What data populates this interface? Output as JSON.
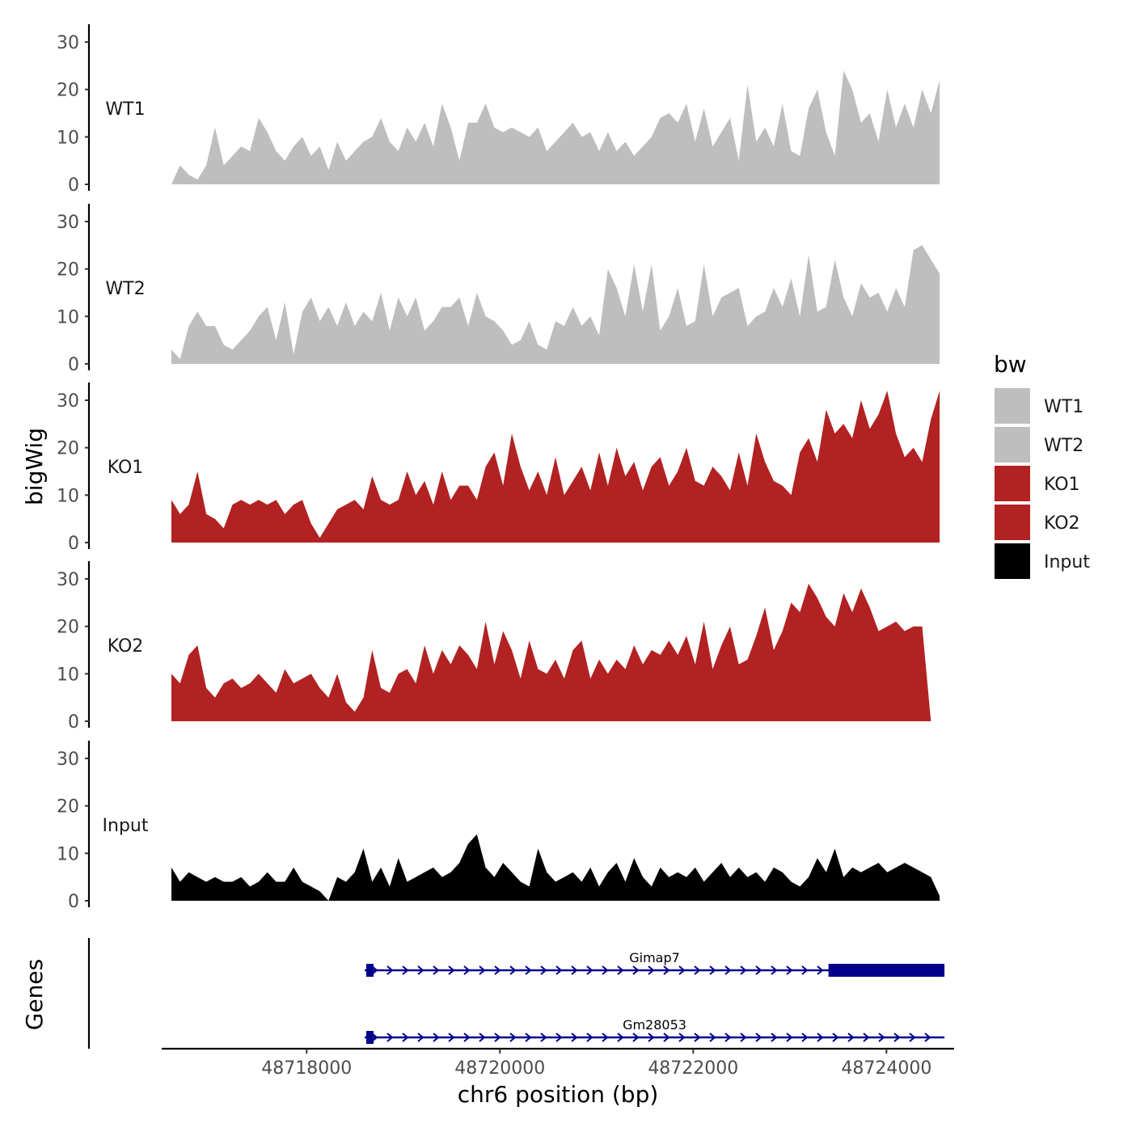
{
  "chart_data": {
    "type": "area",
    "title": "",
    "ylabel": "bigWig",
    "xlabel": "chr6 position (bp)",
    "genes_label": "Genes",
    "xlim": [
      48716500,
      48724700
    ],
    "ylim": [
      0,
      32
    ],
    "y_ticks": [
      0,
      10,
      20,
      30
    ],
    "x_ticks": [
      48718000,
      48720000,
      48722000,
      48724000
    ],
    "x_start": 48716600,
    "x_end": 48724550,
    "legend": {
      "title": "bw",
      "position": "right",
      "items": [
        {
          "label": "WT1",
          "color": "#bebebe"
        },
        {
          "label": "WT2",
          "color": "#bebebe"
        },
        {
          "label": "KO1",
          "color": "#b22222"
        },
        {
          "label": "KO2",
          "color": "#b22222"
        },
        {
          "label": "Input",
          "color": "#000000"
        }
      ]
    },
    "series": [
      {
        "name": "WT1",
        "color": "#bebebe",
        "values": [
          0,
          4,
          2,
          1,
          4,
          12,
          4,
          6,
          8,
          7,
          14,
          11,
          7,
          5,
          8,
          10,
          6,
          8,
          3,
          9,
          5,
          7,
          9,
          10,
          14,
          9,
          7,
          12,
          9,
          13,
          8,
          17,
          12,
          5,
          13,
          13,
          17,
          12,
          11,
          12,
          11,
          10,
          12,
          7,
          9,
          11,
          13,
          10,
          11,
          7,
          11,
          7,
          9,
          6,
          8,
          10,
          14,
          15,
          13,
          17,
          9,
          16,
          8,
          11,
          14,
          5,
          21,
          9,
          12,
          8,
          17,
          7,
          6,
          16,
          20,
          11,
          6,
          24,
          20,
          13,
          15,
          9,
          20,
          12,
          17,
          12,
          20,
          15,
          22
        ]
      },
      {
        "name": "WT2",
        "color": "#bebebe",
        "values": [
          3,
          1,
          8,
          11,
          8,
          8,
          4,
          3,
          5,
          7,
          10,
          12,
          5,
          13,
          2,
          11,
          14,
          9,
          12,
          8,
          13,
          8,
          11,
          9,
          15,
          7,
          14,
          10,
          14,
          7,
          9,
          12,
          12,
          14,
          8,
          15,
          10,
          9,
          7,
          4,
          5,
          9,
          4,
          3,
          9,
          8,
          12,
          8,
          10,
          6,
          20,
          16,
          10,
          21,
          11,
          21,
          7,
          10,
          16,
          8,
          9,
          21,
          10,
          14,
          15,
          16,
          8,
          10,
          11,
          16,
          12,
          18,
          10,
          23,
          11,
          12,
          22,
          14,
          10,
          17,
          14,
          15,
          11,
          16,
          12,
          24,
          25,
          22,
          19
        ]
      },
      {
        "name": "KO1",
        "color": "#b22222",
        "values": [
          9,
          6,
          8,
          15,
          6,
          5,
          3,
          8,
          9,
          8,
          9,
          8,
          9,
          6,
          8,
          9,
          4,
          1,
          4,
          7,
          8,
          9,
          7,
          14,
          9,
          8,
          9,
          15,
          10,
          13,
          8,
          15,
          9,
          12,
          12,
          9,
          16,
          19,
          12,
          23,
          16,
          11,
          15,
          10,
          18,
          10,
          13,
          16,
          11,
          19,
          12,
          20,
          14,
          17,
          11,
          16,
          18,
          12,
          15,
          20,
          13,
          12,
          16,
          14,
          11,
          19,
          12,
          23,
          17,
          13,
          12,
          10,
          19,
          22,
          17,
          28,
          23,
          25,
          22,
          30,
          24,
          27,
          32,
          23,
          18,
          20,
          17,
          26,
          32
        ]
      },
      {
        "name": "KO2",
        "color": "#b22222",
        "values": [
          10,
          8,
          14,
          16,
          7,
          5,
          8,
          9,
          7,
          8,
          10,
          8,
          6,
          11,
          8,
          9,
          10,
          7,
          5,
          10,
          4,
          2,
          5,
          15,
          7,
          6,
          10,
          11,
          8,
          16,
          10,
          15,
          12,
          16,
          14,
          11,
          21,
          12,
          19,
          15,
          9,
          17,
          11,
          10,
          13,
          9,
          15,
          17,
          9,
          13,
          10,
          13,
          11,
          16,
          12,
          15,
          14,
          17,
          14,
          18,
          12,
          21,
          11,
          16,
          20,
          12,
          13,
          18,
          24,
          15,
          19,
          25,
          23,
          29,
          26,
          22,
          20,
          27,
          23,
          28,
          24,
          19,
          20,
          21,
          19,
          20,
          20,
          0,
          0
        ]
      },
      {
        "name": "Input",
        "color": "#000000",
        "values": [
          7,
          4,
          6,
          5,
          4,
          5,
          4,
          4,
          5,
          3,
          4,
          6,
          4,
          4,
          7,
          4,
          3,
          2,
          0,
          5,
          4,
          6,
          11,
          4,
          7,
          3,
          9,
          4,
          5,
          6,
          7,
          5,
          6,
          8,
          12,
          14,
          7,
          5,
          8,
          6,
          4,
          3,
          11,
          6,
          4,
          5,
          6,
          4,
          7,
          3,
          6,
          8,
          4,
          9,
          5,
          3,
          7,
          5,
          6,
          5,
          7,
          4,
          6,
          8,
          5,
          7,
          5,
          6,
          4,
          7,
          6,
          4,
          3,
          5,
          9,
          6,
          11,
          5,
          7,
          6,
          7,
          8,
          6,
          7,
          8,
          7,
          6,
          5,
          1
        ]
      }
    ],
    "genes": [
      {
        "name": "Gimap7",
        "start": 48718600,
        "end": 48724600,
        "thick_start": 48723400
      },
      {
        "name": "Gm28053",
        "start": 48718600,
        "end": 48724600
      }
    ]
  }
}
